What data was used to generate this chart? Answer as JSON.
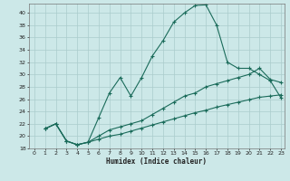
{
  "xlabel": "Humidex (Indice chaleur)",
  "background_color": "#cce8e8",
  "grid_color": "#aacccc",
  "line_color": "#1a6b5a",
  "xlim": [
    -0.5,
    23.3
  ],
  "ylim": [
    18,
    41.5
  ],
  "xticks": [
    0,
    1,
    2,
    3,
    4,
    5,
    6,
    7,
    8,
    9,
    10,
    11,
    12,
    13,
    14,
    15,
    16,
    17,
    18,
    19,
    20,
    21,
    22,
    23
  ],
  "yticks": [
    18,
    20,
    22,
    24,
    26,
    28,
    30,
    32,
    34,
    36,
    38,
    40
  ],
  "line1_x": [
    1,
    2,
    3,
    4,
    5,
    6,
    7,
    8,
    9,
    10,
    11,
    12,
    13,
    14,
    15,
    16,
    17,
    18,
    19,
    20,
    21,
    22,
    23
  ],
  "line1_y": [
    21.2,
    22.0,
    19.2,
    18.6,
    19.0,
    23.0,
    27.0,
    29.5,
    26.5,
    29.5,
    33.0,
    35.5,
    38.5,
    40.0,
    41.2,
    41.3,
    38.0,
    32.0,
    31.0,
    31.0,
    30.0,
    29.0,
    26.2
  ],
  "line2_x": [
    1,
    2,
    3,
    4,
    5,
    6,
    7,
    8,
    9,
    10,
    11,
    12,
    13,
    14,
    15,
    16,
    17,
    18,
    19,
    20,
    21,
    22,
    23
  ],
  "line2_y": [
    21.2,
    22.0,
    19.2,
    18.6,
    19.0,
    20.0,
    21.0,
    21.5,
    22.0,
    22.5,
    23.5,
    24.5,
    25.5,
    26.5,
    27.0,
    28.0,
    28.5,
    29.0,
    29.5,
    30.0,
    31.0,
    29.2,
    28.7
  ],
  "line3_x": [
    1,
    2,
    3,
    4,
    5,
    6,
    7,
    8,
    9,
    10,
    11,
    12,
    13,
    14,
    15,
    16,
    17,
    18,
    19,
    20,
    21,
    22,
    23
  ],
  "line3_y": [
    21.2,
    22.0,
    19.2,
    18.6,
    19.0,
    19.5,
    20.0,
    20.3,
    20.8,
    21.3,
    21.8,
    22.3,
    22.8,
    23.3,
    23.8,
    24.2,
    24.7,
    25.1,
    25.5,
    25.9,
    26.3,
    26.5,
    26.7
  ]
}
